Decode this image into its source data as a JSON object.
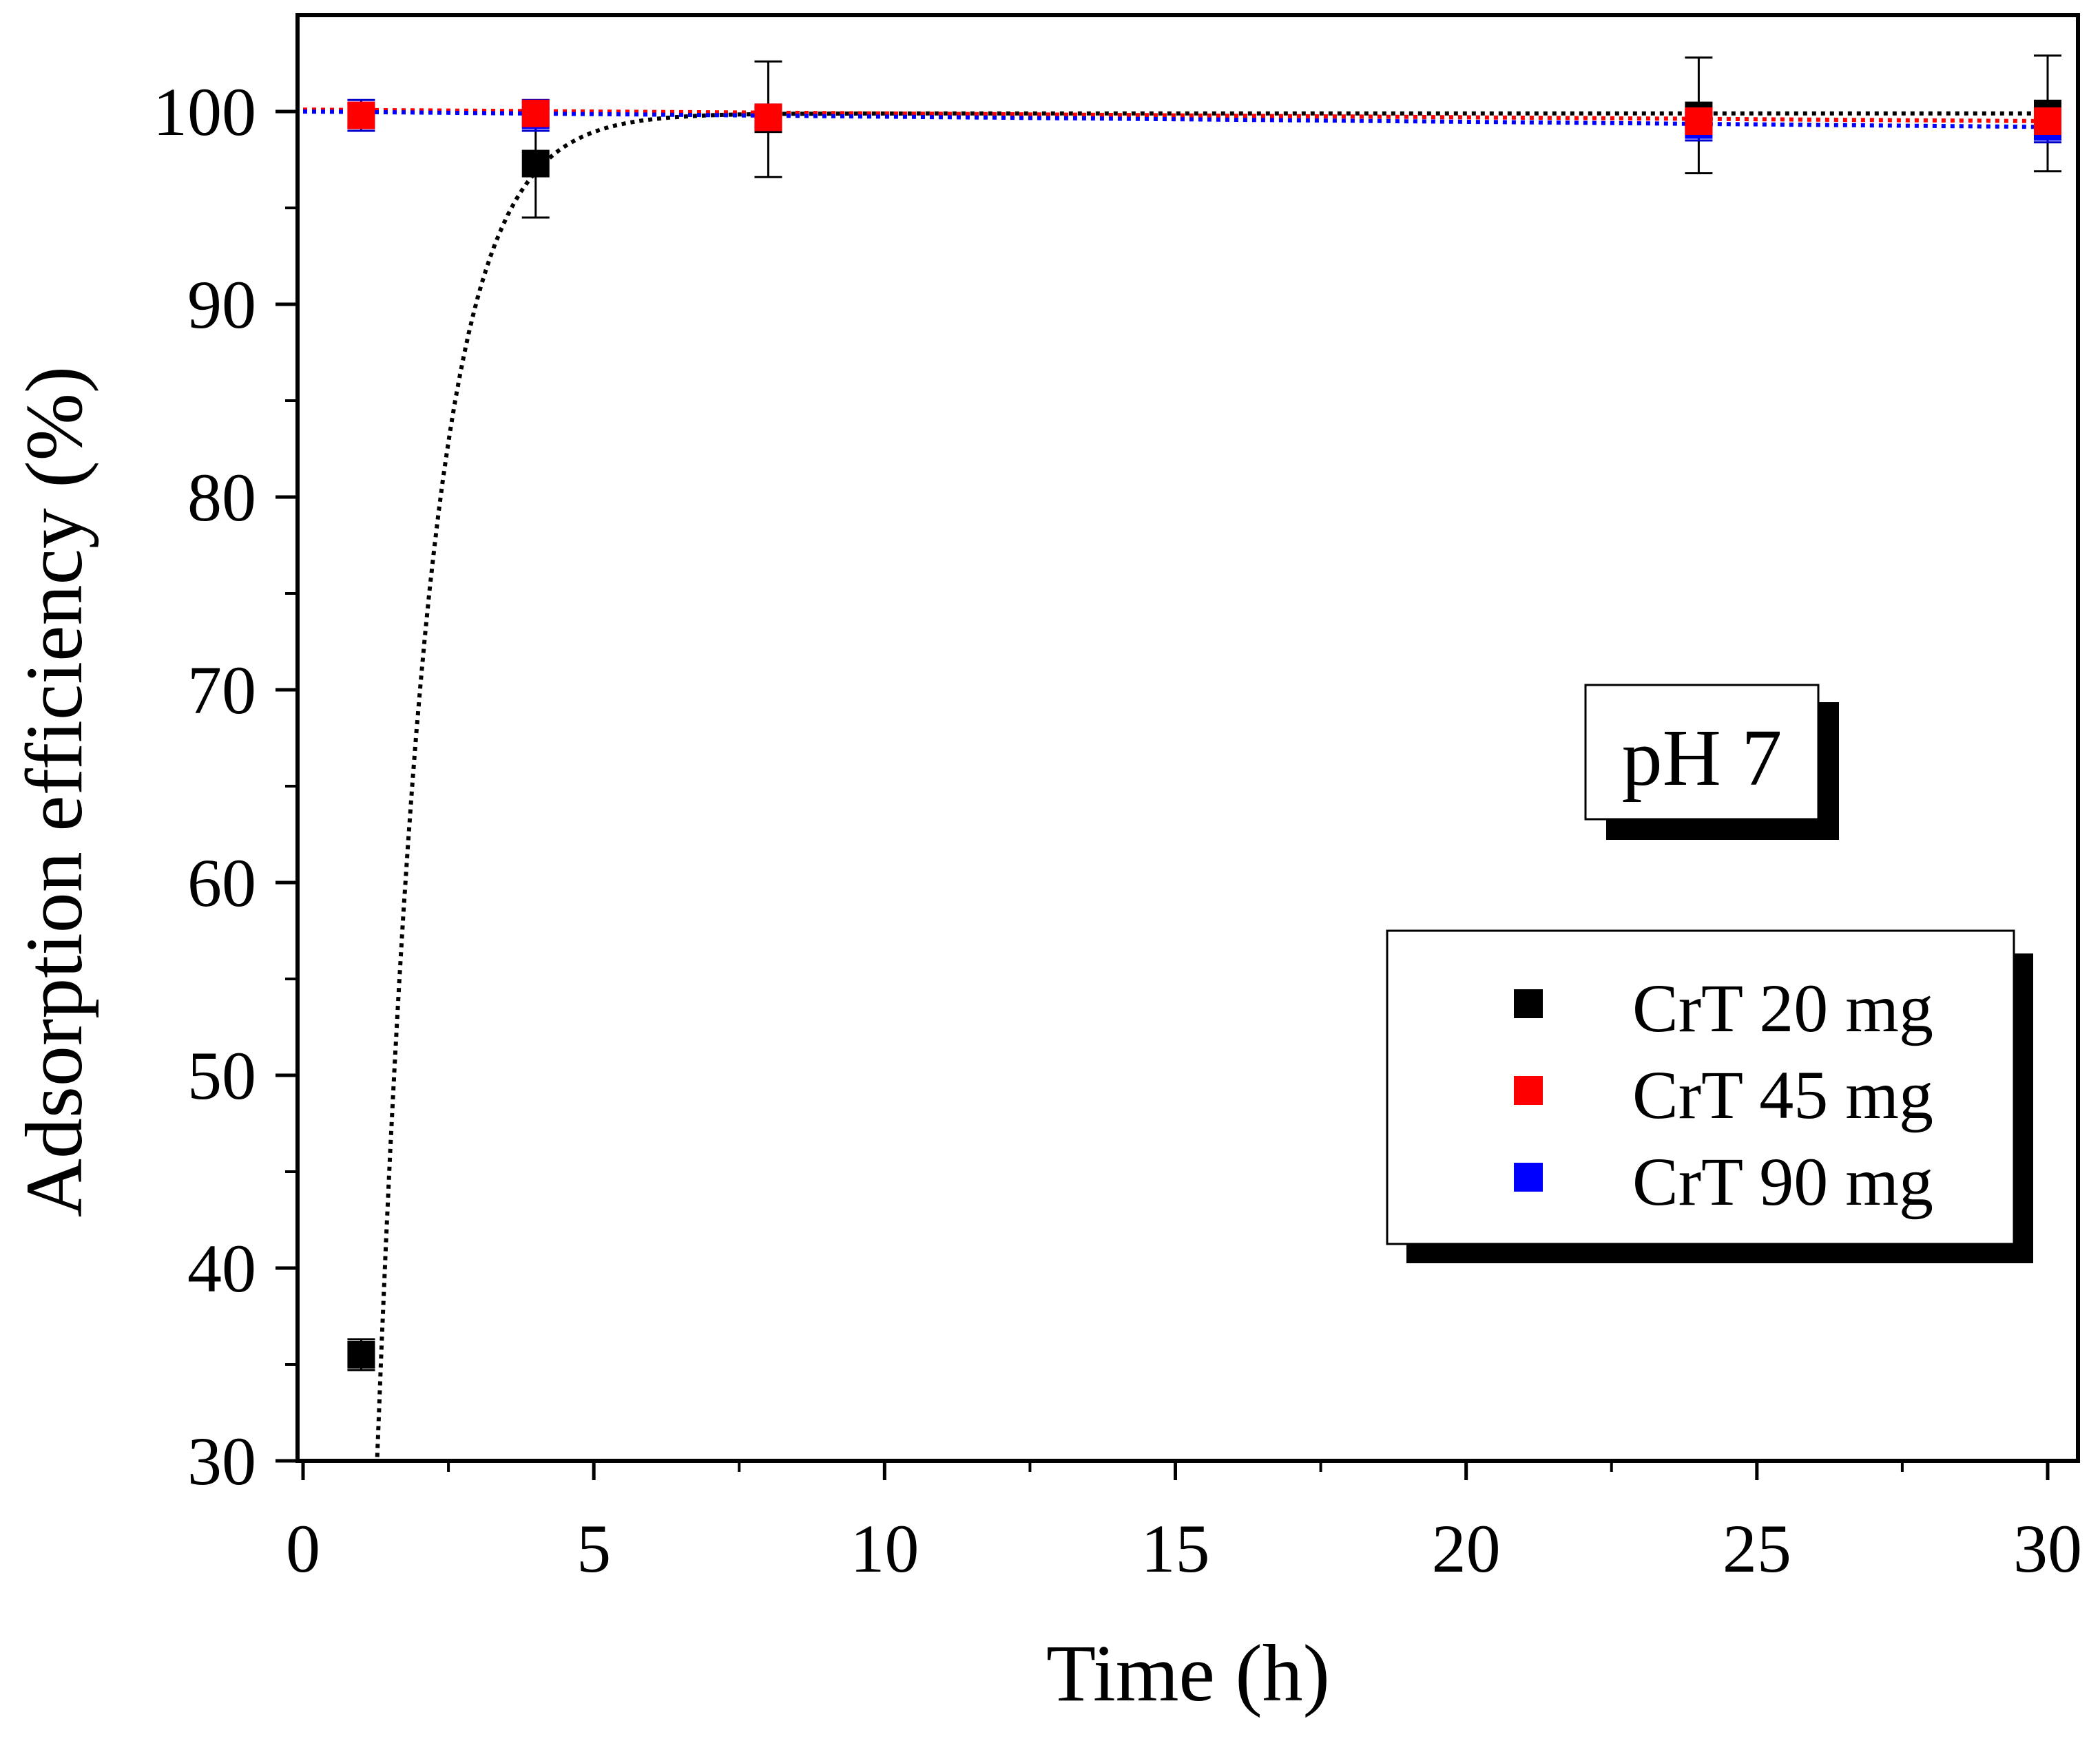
{
  "chart_data": {
    "type": "scatter",
    "title": "",
    "xlabel": "Time (h)",
    "ylabel": "Adsorption efficiency (%)",
    "xlim": [
      0,
      30
    ],
    "ylim": [
      30,
      105
    ],
    "x_ticks": [
      0,
      5,
      10,
      15,
      20,
      25,
      30
    ],
    "y_ticks": [
      30,
      40,
      50,
      60,
      70,
      80,
      90,
      100
    ],
    "annotation": "pH 7",
    "legend_position": "right-middle",
    "series": [
      {
        "name": "CrT 20 mg",
        "color": "#000000",
        "x": [
          1,
          4,
          8,
          24,
          30
        ],
        "y": [
          35.5,
          97.3,
          99.6,
          99.8,
          99.9
        ],
        "error": [
          0.8,
          2.8,
          3.0,
          3.0,
          3.0
        ],
        "fit": {
          "type": "exponential",
          "asymptote": 99.9,
          "amplitude": 302,
          "rate": 1.15
        }
      },
      {
        "name": "CrT 45 mg",
        "color": "#ff0000",
        "x": [
          1,
          4,
          8,
          24,
          30
        ],
        "y": [
          99.8,
          99.9,
          99.7,
          99.5,
          99.5
        ],
        "error": [
          0.6,
          0.6,
          0.5,
          0.6,
          0.6
        ],
        "fit": {
          "type": "linear",
          "start": 100.1,
          "end": 99.5
        }
      },
      {
        "name": "CrT 90 mg",
        "color": "#0000ff",
        "x": [
          1,
          4,
          8,
          24,
          30
        ],
        "y": [
          99.8,
          99.8,
          99.7,
          99.3,
          99.2
        ],
        "error": [
          0.8,
          0.8,
          0.5,
          0.8,
          0.8
        ],
        "fit": {
          "type": "linear",
          "start": 100.0,
          "end": 99.2
        }
      }
    ]
  }
}
